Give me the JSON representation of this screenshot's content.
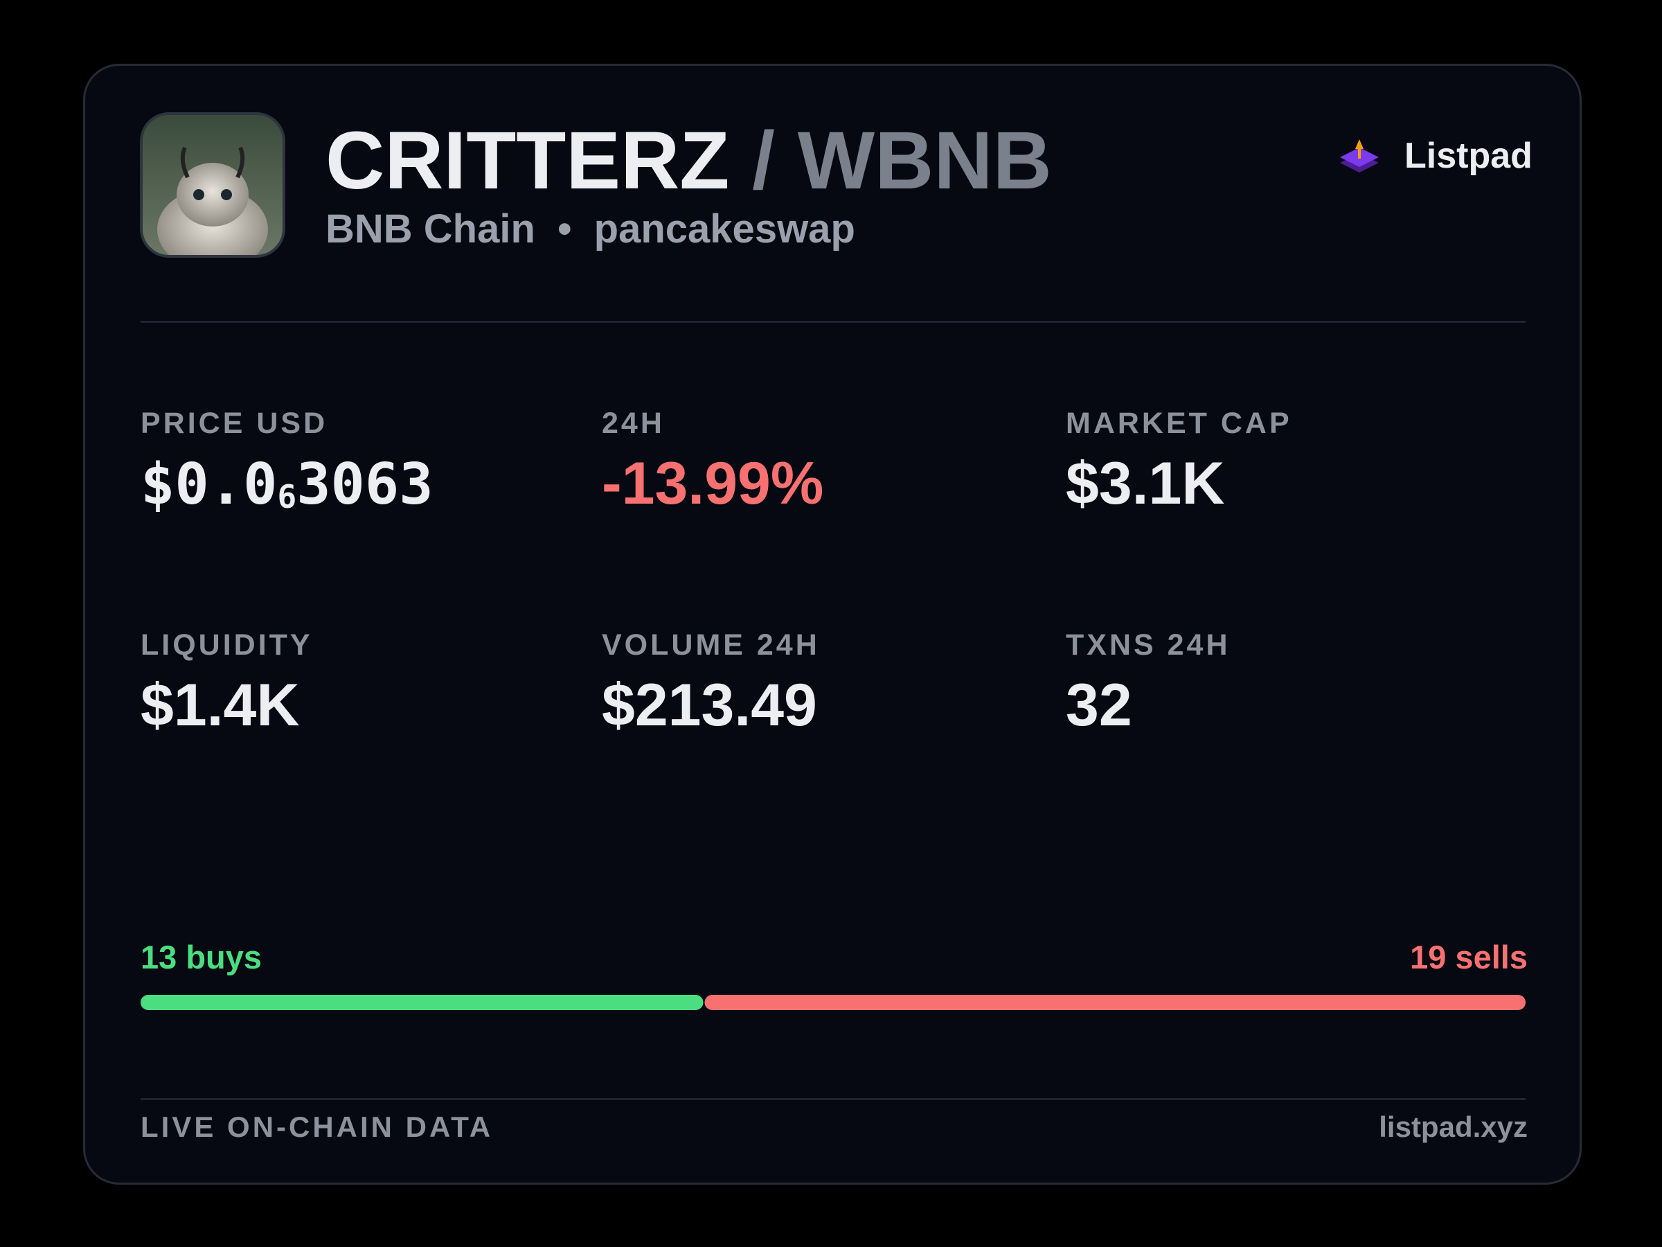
{
  "header": {
    "base": "CRITTERZ",
    "separator": "/",
    "quote": "WBNB",
    "chain": "BNB Chain",
    "dot": "•",
    "dex": "pancakeswap",
    "brand": "Listpad"
  },
  "stats": [
    {
      "label": "PRICE USD",
      "value": {
        "prefix": "$0.0",
        "subscript": "6",
        "digits": "3063"
      }
    },
    {
      "label": "24H",
      "value": "-13.99%"
    },
    {
      "label": "MARKET CAP",
      "value": "$3.1K"
    },
    {
      "label": "LIQUIDITY",
      "value": "$1.4K"
    },
    {
      "label": "VOLUME 24H",
      "value": "$213.49"
    },
    {
      "label": "TXNS 24H",
      "value": "32"
    }
  ],
  "trades": {
    "buys": 13,
    "buys_label": "13 buys",
    "buys_color": "#4ade80",
    "sells": 19,
    "sells_label": "19 sells",
    "sells_color": "#f87171"
  },
  "footer": {
    "left": "LIVE ON-CHAIN DATA",
    "right": "listpad.xyz"
  }
}
